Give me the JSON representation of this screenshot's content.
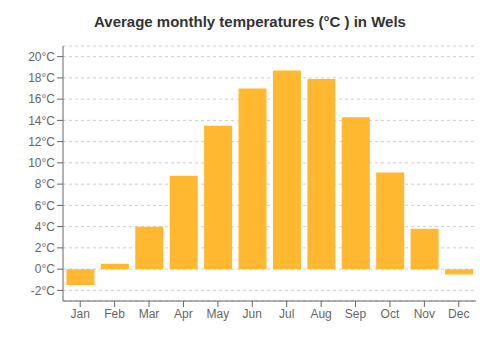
{
  "chart_data": {
    "type": "bar",
    "title": "Average monthly temperatures (°C ) in Wels",
    "categories": [
      "Jan",
      "Feb",
      "Mar",
      "Apr",
      "May",
      "Jun",
      "Jul",
      "Aug",
      "Sep",
      "Oct",
      "Nov",
      "Dec"
    ],
    "values": [
      -1.5,
      0.5,
      4.0,
      8.8,
      13.5,
      17.0,
      18.7,
      17.9,
      14.3,
      9.1,
      3.8,
      -0.5
    ],
    "color": "#FFB830",
    "ylim": [
      -3,
      21
    ],
    "yticks": [
      {
        "value": -2,
        "label": "-2°C"
      },
      {
        "value": 0,
        "label": "0°C"
      },
      {
        "value": 2,
        "label": "2°C"
      },
      {
        "value": 4,
        "label": "4°C"
      },
      {
        "value": 6,
        "label": "6°C"
      },
      {
        "value": 8,
        "label": "8°C"
      },
      {
        "value": 10,
        "label": "10°C"
      },
      {
        "value": 12,
        "label": "12°C"
      },
      {
        "value": 14,
        "label": "14°C"
      },
      {
        "value": 16,
        "label": "16°C"
      },
      {
        "value": 18,
        "label": "18°C"
      },
      {
        "value": 20,
        "label": "20°C"
      }
    ],
    "grid": true
  }
}
